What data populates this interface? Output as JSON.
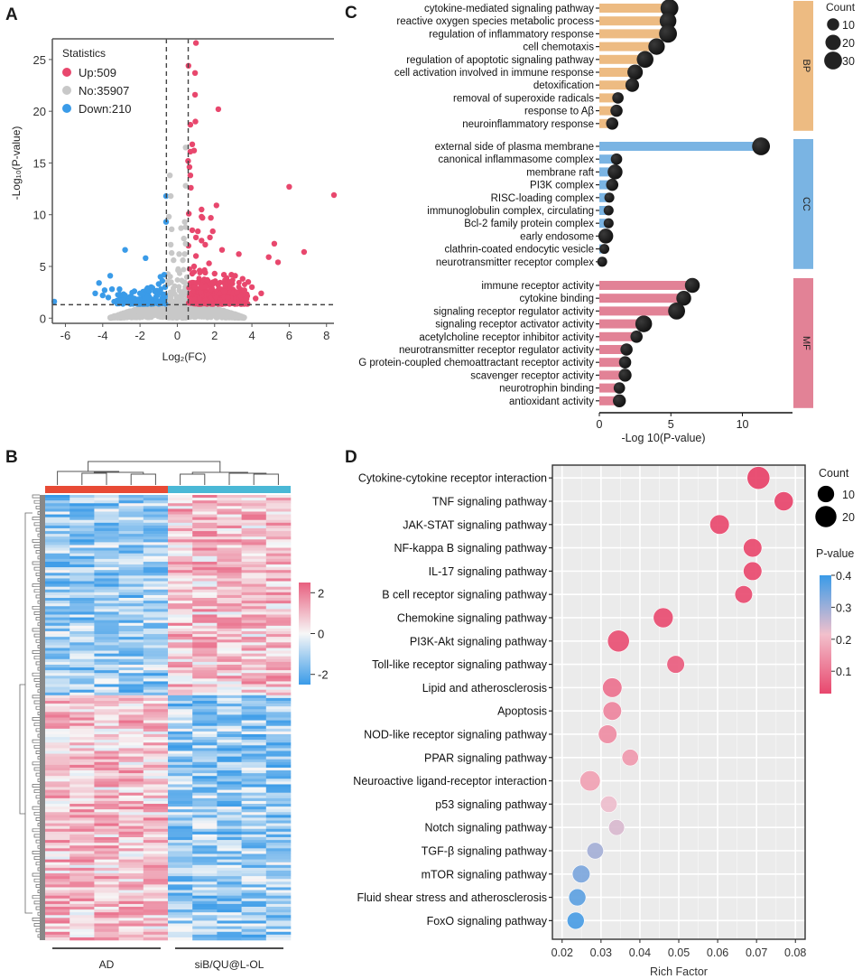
{
  "panel_letters": {
    "a": "A",
    "b": "B",
    "c": "C",
    "d": "D"
  },
  "chart_data": [
    {
      "id": "A",
      "type": "scatter",
      "title": "",
      "xlabel": "Log₂(FC)",
      "ylabel": "-Log₁₀(P-value)",
      "xlim": [
        -6.7,
        8.4
      ],
      "ylim": [
        -0.5,
        27
      ],
      "xticks": [
        -6,
        -4,
        -2,
        0,
        2,
        4,
        6,
        8
      ],
      "yticks": [
        0,
        5,
        10,
        15,
        20,
        25
      ],
      "thresholds": {
        "fc": [
          -0.585,
          0.585
        ],
        "p": 1.3
      },
      "legend": {
        "title": "Statistics",
        "position": "top-left",
        "entries": [
          {
            "label": "Up:509",
            "color": "#e8476d"
          },
          {
            "label": "No:35907",
            "color": "#c8c8c8"
          },
          {
            "label": "Down:210",
            "color": "#3a9be8"
          }
        ]
      },
      "series": [
        {
          "name": "Up",
          "color": "#e8476d",
          "points": [
            [
              1.0,
              26.6
            ],
            [
              0.6,
              24.4
            ],
            [
              0.95,
              23.7
            ],
            [
              0.95,
              21.6
            ],
            [
              2.2,
              20.2
            ],
            [
              0.97,
              19.0
            ],
            [
              0.7,
              18.7
            ],
            [
              0.8,
              16.8
            ],
            [
              0.7,
              16.1
            ],
            [
              0.9,
              16.2
            ],
            [
              0.58,
              15.2
            ],
            [
              0.65,
              14.6
            ],
            [
              0.7,
              13.8
            ],
            [
              0.73,
              12.6
            ],
            [
              6.0,
              12.7
            ],
            [
              8.4,
              11.9
            ],
            [
              0.62,
              10.1
            ],
            [
              1.3,
              10.5
            ],
            [
              2.1,
              10.9
            ],
            [
              1.3,
              9.8
            ],
            [
              1.8,
              9.7
            ],
            [
              1.35,
              9.7
            ],
            [
              0.8,
              8.5
            ],
            [
              1.1,
              8.4
            ],
            [
              1.9,
              8.4
            ],
            [
              1.0,
              7.8
            ],
            [
              1.3,
              7.5
            ],
            [
              1.75,
              7.8
            ],
            [
              0.6,
              7.0
            ],
            [
              1.5,
              7.1
            ],
            [
              5.2,
              7.2
            ],
            [
              6.8,
              6.4
            ],
            [
              2.4,
              6.6
            ],
            [
              3.3,
              6.2
            ],
            [
              4.9,
              5.9
            ],
            [
              5.4,
              5.4
            ],
            [
              1.0,
              6.0
            ],
            [
              1.7,
              5.3
            ],
            [
              2.5,
              4.2
            ],
            [
              3.5,
              3.8
            ],
            [
              3.8,
              3.5
            ],
            [
              4.0,
              3.0
            ],
            [
              4.5,
              2.4
            ],
            [
              4.2,
              1.9
            ],
            [
              0.9,
              5.0
            ],
            [
              1.2,
              4.6
            ],
            [
              1.5,
              4.4
            ],
            [
              2.0,
              4.3
            ],
            [
              2.9,
              4.2
            ],
            [
              3.1,
              4.1
            ],
            [
              2.2,
              3.3
            ],
            [
              1.6,
              3.7
            ],
            [
              0.8,
              4.3
            ],
            [
              1.0,
              3.4
            ],
            [
              1.3,
              3.0
            ],
            [
              1.8,
              2.8
            ],
            [
              2.5,
              2.6
            ],
            [
              3.0,
              2.4
            ],
            [
              3.4,
              2.2
            ],
            [
              3.7,
              1.9
            ],
            [
              2.7,
              2.0
            ],
            [
              3.2,
              2.5
            ],
            [
              3.6,
              2.7
            ]
          ]
        },
        {
          "name": "Down",
          "color": "#3a9be8",
          "points": [
            [
              -0.6,
              11.8
            ],
            [
              -0.6,
              9.3
            ],
            [
              -2.8,
              6.6
            ],
            [
              -1.7,
              5.8
            ],
            [
              -3.6,
              4.1
            ],
            [
              -4.2,
              3.4
            ],
            [
              -4.4,
              2.4
            ],
            [
              -3.5,
              2.8
            ],
            [
              -3.9,
              2.7
            ],
            [
              -2.3,
              2.6
            ],
            [
              -1.6,
              2.9
            ],
            [
              -1.4,
              3.0
            ],
            [
              -0.9,
              4.0
            ],
            [
              -0.7,
              4.2
            ],
            [
              -6.6,
              1.6
            ],
            [
              -3.1,
              2.8
            ],
            [
              -4.0,
              2.2
            ],
            [
              -3.7,
              2.0
            ],
            [
              -2.8,
              2.2
            ],
            [
              -2.0,
              2.4
            ],
            [
              -1.0,
              3.3
            ],
            [
              -0.8,
              3.6
            ],
            [
              -1.2,
              2.6
            ],
            [
              -0.65,
              3.0
            ]
          ]
        },
        {
          "name": "No",
          "color": "#c8c8c8",
          "points": [
            [
              0.45,
              16.5
            ],
            [
              -0.4,
              13.8
            ],
            [
              0.45,
              12.8
            ],
            [
              -0.35,
              11.8
            ],
            [
              -0.45,
              9.8
            ],
            [
              0.4,
              9.3
            ],
            [
              -0.3,
              8.6
            ],
            [
              0.2,
              8.7
            ],
            [
              0.45,
              8.8
            ],
            [
              0.35,
              7.7
            ],
            [
              -0.35,
              7.1
            ],
            [
              0.45,
              7.2
            ],
            [
              -0.3,
              6.3
            ],
            [
              0.1,
              6.2
            ],
            [
              0.4,
              6.2
            ],
            [
              -0.2,
              5.6
            ],
            [
              0.3,
              5.6
            ]
          ]
        }
      ],
      "annotations": [
        "Up:509",
        "No:35907",
        "Down:210"
      ]
    },
    {
      "id": "B",
      "type": "heatmap",
      "title": "",
      "groups": [
        {
          "label": "AD",
          "color": "#e84a35",
          "columns": 5
        },
        {
          "label": "siB/QU@L-OL",
          "color": "#4ab8d6",
          "columns": 5
        }
      ],
      "colorbar": {
        "ticks": [
          2,
          0,
          -2
        ],
        "range": [
          -2.5,
          2.5
        ],
        "high_color": "#e8607f",
        "mid_color": "#f7f7f7",
        "low_color": "#3a9be8"
      },
      "row_blocks": [
        {
          "description": "AD low / siB high",
          "fraction": 0.45,
          "ad_mean": -1.2,
          "sib_mean": 0.9
        },
        {
          "description": "AD high / siB low",
          "fraction": 0.55,
          "ad_mean": 0.9,
          "sib_mean": -1.2
        }
      ]
    },
    {
      "id": "C",
      "type": "bar",
      "title": "",
      "xlabel": "-Log 10(P-value)",
      "xlim": [
        0,
        13.5
      ],
      "xticks": [
        0,
        5,
        10
      ],
      "legend": {
        "title": "Count",
        "entries": [
          10,
          20,
          30
        ],
        "position": "top-right"
      },
      "categories": [
        {
          "name": "BP",
          "color": "#edbb82",
          "terms": [
            {
              "label": "cytokine-mediated signaling pathway",
              "value": 4.9,
              "count": 30
            },
            {
              "label": "reactive oxygen species metabolic process",
              "value": 4.8,
              "count": 25
            },
            {
              "label": "regulation of inflammatory response",
              "value": 4.8,
              "count": 30
            },
            {
              "label": "cell chemotaxis",
              "value": 4.0,
              "count": 24
            },
            {
              "label": "regulation of apoptotic signaling pathway",
              "value": 3.2,
              "count": 25
            },
            {
              "label": "cell activation involved in immune response",
              "value": 2.5,
              "count": 20
            },
            {
              "label": "detoxification",
              "value": 2.3,
              "count": 14
            },
            {
              "label": "removal of superoxide radicals",
              "value": 1.3,
              "count": 8
            },
            {
              "label": "response to Aβ",
              "value": 1.2,
              "count": 10
            },
            {
              "label": "neuroinflammatory response",
              "value": 0.9,
              "count": 10
            }
          ]
        },
        {
          "name": "CC",
          "color": "#7ab4e3",
          "terms": [
            {
              "label": "external side of plasma membrane",
              "value": 11.3,
              "count": 30
            },
            {
              "label": "canonical inflammasome complex",
              "value": 1.2,
              "count": 8
            },
            {
              "label": "membrane raft",
              "value": 1.1,
              "count": 18
            },
            {
              "label": "PI3K complex",
              "value": 0.9,
              "count": 10
            },
            {
              "label": "RISC-loading complex",
              "value": 0.7,
              "count": 5
            },
            {
              "label": "immunoglobulin complex, circulating",
              "value": 0.65,
              "count": 5
            },
            {
              "label": "Bcl-2 family protein complex",
              "value": 0.65,
              "count": 5
            },
            {
              "label": "early endosome",
              "value": 0.45,
              "count": 18
            },
            {
              "label": "clathrin-coated endocytic vesicle",
              "value": 0.35,
              "count": 5
            },
            {
              "label": "neurotransmitter receptor complex",
              "value": 0.2,
              "count": 5
            }
          ]
        },
        {
          "name": "MF",
          "color": "#e28296",
          "terms": [
            {
              "label": "immune receptor activity",
              "value": 6.5,
              "count": 18
            },
            {
              "label": "cytokine binding",
              "value": 5.9,
              "count": 18
            },
            {
              "label": "signaling receptor regulator activity",
              "value": 5.4,
              "count": 26
            },
            {
              "label": "signaling receptor activator activity",
              "value": 3.1,
              "count": 25
            },
            {
              "label": "acetylcholine receptor inhibitor activity",
              "value": 2.6,
              "count": 10
            },
            {
              "label": "neurotransmitter receptor regulator activity",
              "value": 1.9,
              "count": 10
            },
            {
              "label": "G protein-coupled chemoattractant receptor activity",
              "value": 1.8,
              "count": 10
            },
            {
              "label": "scavenger receptor activity",
              "value": 1.8,
              "count": 12
            },
            {
              "label": "neurotrophin binding",
              "value": 1.4,
              "count": 8
            },
            {
              "label": "antioxidant activity",
              "value": 1.4,
              "count": 12
            }
          ]
        }
      ]
    },
    {
      "id": "D",
      "type": "scatter",
      "title": "",
      "xlabel": "Rich Factor",
      "ylabel": "",
      "xlim": [
        0.0175,
        0.0825
      ],
      "xticks": [
        0.02,
        0.03,
        0.04,
        0.05,
        0.06,
        0.07,
        0.08
      ],
      "legend": {
        "count_title": "Count",
        "count_entries": [
          10,
          20
        ],
        "color_title": "P-value",
        "color_ticks": [
          0.4,
          0.3,
          0.2,
          0.1
        ],
        "color_range": [
          0.03,
          0.4
        ],
        "low_color": "#e8476d",
        "mid_color": "#f2c0cc",
        "high_color": "#3a9be8",
        "position": "right"
      },
      "points": [
        {
          "label": "Cytokine-cytokine receptor interaction",
          "x": 0.0705,
          "count": 24,
          "p": 0.03
        },
        {
          "label": "TNF signaling pathway",
          "x": 0.077,
          "count": 15,
          "p": 0.035
        },
        {
          "label": "JAK-STAT signaling pathway",
          "x": 0.0605,
          "count": 16,
          "p": 0.04
        },
        {
          "label": "NF-kappa B signaling pathway",
          "x": 0.069,
          "count": 14,
          "p": 0.04
        },
        {
          "label": "IL-17 signaling pathway",
          "x": 0.069,
          "count": 14,
          "p": 0.04
        },
        {
          "label": "B cell receptor signaling pathway",
          "x": 0.0667,
          "count": 12,
          "p": 0.045
        },
        {
          "label": "Chemokine signaling pathway",
          "x": 0.046,
          "count": 17,
          "p": 0.045
        },
        {
          "label": "PI3K-Akt signaling pathway",
          "x": 0.0345,
          "count": 22,
          "p": 0.05
        },
        {
          "label": "Toll-like receptor signaling pathway",
          "x": 0.0492,
          "count": 12,
          "p": 0.07
        },
        {
          "label": "Lipid and atherosclerosis",
          "x": 0.0329,
          "count": 16,
          "p": 0.1
        },
        {
          "label": "Apoptosis",
          "x": 0.0329,
          "count": 14,
          "p": 0.13
        },
        {
          "label": "NOD-like receptor signaling pathway",
          "x": 0.0317,
          "count": 14,
          "p": 0.14
        },
        {
          "label": "PPAR signaling pathway",
          "x": 0.0375,
          "count": 10,
          "p": 0.16
        },
        {
          "label": "Neuroactive ligand-receptor interaction",
          "x": 0.0272,
          "count": 18,
          "p": 0.17
        },
        {
          "label": "p53 signaling pathway",
          "x": 0.032,
          "count": 10,
          "p": 0.22
        },
        {
          "label": "Notch signaling pathway",
          "x": 0.034,
          "count": 9,
          "p": 0.24
        },
        {
          "label": "TGF-β signaling pathway",
          "x": 0.0285,
          "count": 10,
          "p": 0.29
        },
        {
          "label": "mTOR signaling pathway",
          "x": 0.0249,
          "count": 12,
          "p": 0.33
        },
        {
          "label": "Fluid shear stress and atherosclerosis",
          "x": 0.0239,
          "count": 11,
          "p": 0.36
        },
        {
          "label": "FoxO signaling pathway",
          "x": 0.0235,
          "count": 11,
          "p": 0.38
        }
      ]
    }
  ]
}
